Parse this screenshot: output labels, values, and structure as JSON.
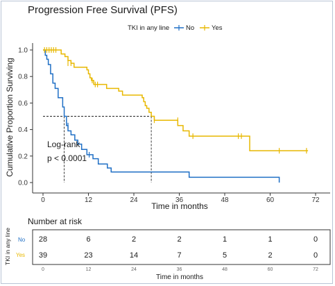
{
  "chart_data": [
    {
      "type": "line",
      "title": "Progression Free Survival (PFS)",
      "xlabel": "Time in months",
      "ylabel": "Cumulative Proportion Surviving",
      "xlim": [
        0,
        72
      ],
      "ylim": [
        0,
        1
      ],
      "x_ticks": [
        0,
        12,
        24,
        36,
        48,
        60,
        72
      ],
      "y_ticks": [
        0.0,
        0.2,
        0.4,
        0.6,
        0.8,
        1.0
      ],
      "y_tick_labels": [
        "0.0",
        "0.2",
        "0.4",
        "0.6",
        "0.8",
        "1.0"
      ],
      "grid": false,
      "legend": {
        "title": "TKI in any line",
        "placement": "top",
        "entries": [
          "No",
          "Yes"
        ]
      },
      "series": [
        {
          "name": "No",
          "color": "#1f6fc5",
          "steps": [
            [
              0,
              1.0
            ],
            [
              0.6,
              0.96
            ],
            [
              1.0,
              0.93
            ],
            [
              1.4,
              0.89
            ],
            [
              2.0,
              0.82
            ],
            [
              2.6,
              0.75
            ],
            [
              3.2,
              0.71
            ],
            [
              4.0,
              0.64
            ],
            [
              5.2,
              0.57
            ],
            [
              5.6,
              0.5
            ],
            [
              6.2,
              0.43
            ],
            [
              6.6,
              0.39
            ],
            [
              7.4,
              0.36
            ],
            [
              8.4,
              0.32
            ],
            [
              9.2,
              0.29
            ],
            [
              10.2,
              0.25
            ],
            [
              11.6,
              0.21
            ],
            [
              13.2,
              0.18
            ],
            [
              14.6,
              0.14
            ],
            [
              17.0,
              0.11
            ],
            [
              18.0,
              0.08
            ],
            [
              38.0,
              0.08
            ],
            [
              38.6,
              0.04
            ],
            [
              62.4,
              0.04
            ],
            [
              62.4,
              0.0
            ]
          ],
          "censored": [
            [
              6.6,
              0.43
            ],
            [
              12.2,
              0.21
            ]
          ]
        },
        {
          "name": "Yes",
          "color": "#e8b800",
          "steps": [
            [
              0,
              1.0
            ],
            [
              4.8,
              0.97
            ],
            [
              5.8,
              0.95
            ],
            [
              6.6,
              0.92
            ],
            [
              7.4,
              0.9
            ],
            [
              8.2,
              0.87
            ],
            [
              11.6,
              0.85
            ],
            [
              12.0,
              0.82
            ],
            [
              12.4,
              0.79
            ],
            [
              12.8,
              0.77
            ],
            [
              13.4,
              0.74
            ],
            [
              16.8,
              0.71
            ],
            [
              20.0,
              0.69
            ],
            [
              21.0,
              0.66
            ],
            [
              26.2,
              0.64
            ],
            [
              26.6,
              0.61
            ],
            [
              27.0,
              0.58
            ],
            [
              27.4,
              0.56
            ],
            [
              28.0,
              0.53
            ],
            [
              28.6,
              0.5
            ],
            [
              29.4,
              0.47
            ],
            [
              35.6,
              0.43
            ],
            [
              37.0,
              0.39
            ],
            [
              38.6,
              0.35
            ],
            [
              54.6,
              0.24
            ],
            [
              70.0,
              0.24
            ]
          ],
          "censored": [
            [
              0.4,
              1.0
            ],
            [
              1.0,
              1.0
            ],
            [
              1.6,
              1.0
            ],
            [
              2.2,
              1.0
            ],
            [
              2.8,
              1.0
            ],
            [
              3.4,
              1.0
            ],
            [
              6.6,
              0.9
            ],
            [
              7.4,
              0.9
            ],
            [
              13.0,
              0.77
            ],
            [
              13.8,
              0.74
            ],
            [
              14.4,
              0.74
            ],
            [
              29.4,
              0.47
            ],
            [
              35.6,
              0.47
            ],
            [
              39.6,
              0.35
            ],
            [
              51.6,
              0.35
            ],
            [
              52.4,
              0.35
            ],
            [
              62.4,
              0.24
            ],
            [
              69.6,
              0.24
            ]
          ]
        }
      ],
      "median_reference": {
        "y": 0.5,
        "x_no": 5.6,
        "x_yes": 28.6
      },
      "annotation": [
        "Log-rank",
        "p < 0.0001"
      ]
    },
    {
      "type": "table",
      "title": "Number at risk",
      "ylabel": "TKI in any line",
      "xlabel": "Time in months",
      "x_ticks": [
        0,
        12,
        24,
        36,
        48,
        60,
        72
      ],
      "rows": [
        {
          "label": "No",
          "color": "#1f6fc5",
          "values": [
            28,
            6,
            2,
            2,
            1,
            1,
            0
          ]
        },
        {
          "label": "Yes",
          "color": "#e8b800",
          "values": [
            39,
            23,
            14,
            7,
            5,
            2,
            0
          ]
        }
      ]
    }
  ]
}
